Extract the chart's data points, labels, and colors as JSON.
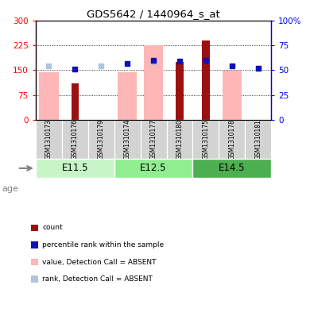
{
  "title": "GDS5642 / 1440964_s_at",
  "samples": [
    "GSM1310173",
    "GSM1310176",
    "GSM1310179",
    "GSM1310174",
    "GSM1310177",
    "GSM1310180",
    "GSM1310175",
    "GSM1310178",
    "GSM1310181"
  ],
  "count_values": [
    0,
    110,
    0,
    0,
    0,
    175,
    240,
    0,
    0
  ],
  "count_absent": [
    145,
    0,
    0,
    145,
    225,
    0,
    0,
    148,
    0
  ],
  "rank_present": [
    0,
    51,
    0,
    57,
    60,
    59,
    60,
    54,
    52
  ],
  "rank_absent": [
    54,
    0,
    54,
    0,
    58,
    0,
    0,
    0,
    52
  ],
  "age_groups": [
    {
      "label": "E11.5",
      "start": 0,
      "end": 3
    },
    {
      "label": "E12.5",
      "start": 3,
      "end": 6
    },
    {
      "label": "E14.5",
      "start": 6,
      "end": 9
    }
  ],
  "ylim_left": [
    0,
    300
  ],
  "ylim_right": [
    0,
    100
  ],
  "yticks_left": [
    0,
    75,
    150,
    225,
    300
  ],
  "ytick_labels_left": [
    "0",
    "75",
    "150",
    "225",
    "300"
  ],
  "ytick_labels_right": [
    "0",
    "25",
    "50",
    "75",
    "100%"
  ],
  "color_count": "#9b1111",
  "color_rank_present": "#1111bb",
  "color_value_absent": "#ffb6b6",
  "color_rank_absent": "#b0c4de",
  "age_color_light": "#c8f5c8",
  "age_color_mid": "#90ee90",
  "age_color_dark": "#4caf50",
  "sample_label_bg": "#d3d3d3"
}
